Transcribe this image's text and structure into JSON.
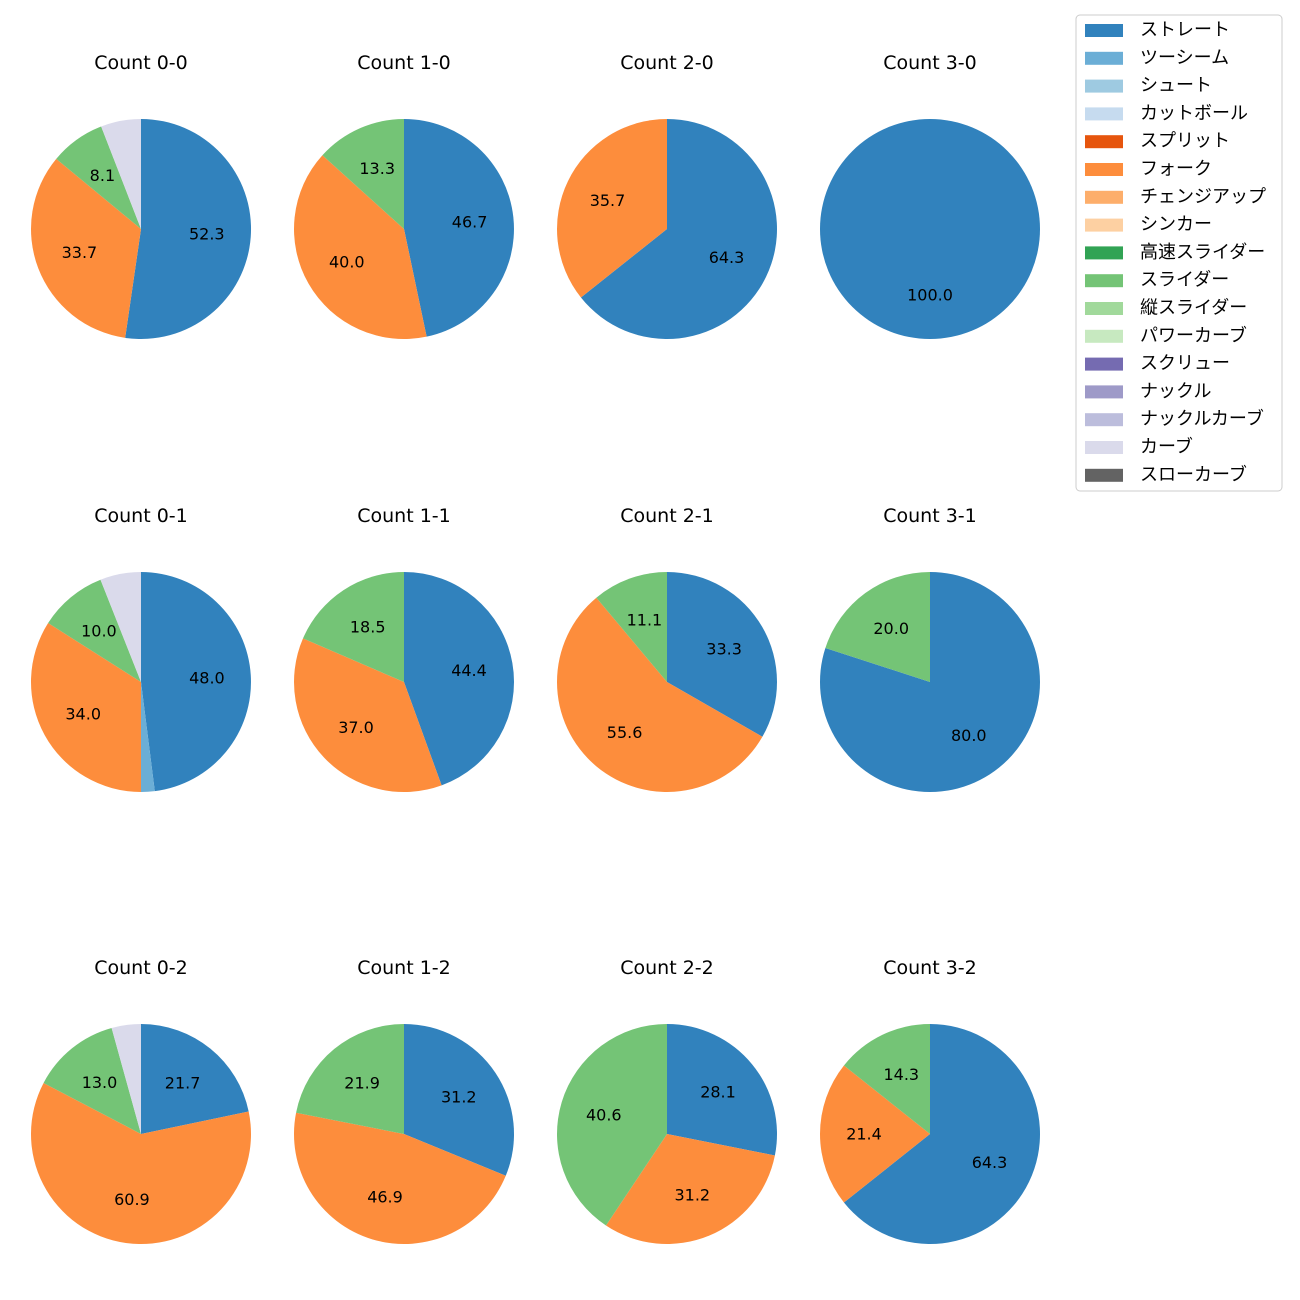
{
  "chart_data": {
    "type": "pie",
    "start_angle_deg": 90,
    "direction": "clockwise",
    "label_format": "one decimal percent",
    "legend": {
      "placement": "top-right",
      "entries": [
        {
          "name": "ストレート",
          "color": "#3182bd"
        },
        {
          "name": "ツーシーム",
          "color": "#6baed6"
        },
        {
          "name": "シュート",
          "color": "#9ecae1"
        },
        {
          "name": "カットボール",
          "color": "#c6dbef"
        },
        {
          "name": "スプリット",
          "color": "#e6550d"
        },
        {
          "name": "フォーク",
          "color": "#fd8d3c"
        },
        {
          "name": "チェンジアップ",
          "color": "#fdae6b"
        },
        {
          "name": "シンカー",
          "color": "#fdd0a2"
        },
        {
          "name": "高速スライダー",
          "color": "#31a354"
        },
        {
          "name": "スライダー",
          "color": "#74c476"
        },
        {
          "name": "縦スライダー",
          "color": "#a1d99b"
        },
        {
          "name": "パワーカーブ",
          "color": "#c7e9c0"
        },
        {
          "name": "スクリュー",
          "color": "#756bb1"
        },
        {
          "name": "ナックル",
          "color": "#9e9ac8"
        },
        {
          "name": "ナックルカーブ",
          "color": "#bcbddc"
        },
        {
          "name": "カーブ",
          "color": "#dadaeb"
        },
        {
          "name": "スローカーブ",
          "color": "#636363"
        }
      ]
    },
    "pies": [
      {
        "title": "Count 0-0",
        "slices": [
          {
            "pitch": "ストレート",
            "value": 52.3,
            "label": "52.3"
          },
          {
            "pitch": "フォーク",
            "value": 33.7,
            "label": "33.7"
          },
          {
            "pitch": "スライダー",
            "value": 8.1,
            "label": "8.1"
          },
          {
            "pitch": "カーブ",
            "value": 5.9,
            "label": ""
          }
        ]
      },
      {
        "title": "Count 1-0",
        "slices": [
          {
            "pitch": "ストレート",
            "value": 46.7,
            "label": "46.7"
          },
          {
            "pitch": "フォーク",
            "value": 40.0,
            "label": "40.0"
          },
          {
            "pitch": "スライダー",
            "value": 13.3,
            "label": "13.3"
          }
        ]
      },
      {
        "title": "Count 2-0",
        "slices": [
          {
            "pitch": "ストレート",
            "value": 64.3,
            "label": "64.3"
          },
          {
            "pitch": "フォーク",
            "value": 35.7,
            "label": "35.7"
          }
        ]
      },
      {
        "title": "Count 3-0",
        "slices": [
          {
            "pitch": "ストレート",
            "value": 100.0,
            "label": "100.0"
          }
        ]
      },
      {
        "title": "Count 0-1",
        "slices": [
          {
            "pitch": "ストレート",
            "value": 48.0,
            "label": "48.0"
          },
          {
            "pitch": "ツーシーム",
            "value": 2.0,
            "label": ""
          },
          {
            "pitch": "フォーク",
            "value": 34.0,
            "label": "34.0"
          },
          {
            "pitch": "スライダー",
            "value": 10.0,
            "label": "10.0"
          },
          {
            "pitch": "カーブ",
            "value": 6.0,
            "label": ""
          }
        ]
      },
      {
        "title": "Count 1-1",
        "slices": [
          {
            "pitch": "ストレート",
            "value": 44.4,
            "label": "44.4"
          },
          {
            "pitch": "フォーク",
            "value": 37.0,
            "label": "37.0"
          },
          {
            "pitch": "スライダー",
            "value": 18.5,
            "label": "18.5"
          }
        ]
      },
      {
        "title": "Count 2-1",
        "slices": [
          {
            "pitch": "ストレート",
            "value": 33.3,
            "label": "33.3"
          },
          {
            "pitch": "フォーク",
            "value": 55.6,
            "label": "55.6"
          },
          {
            "pitch": "スライダー",
            "value": 11.1,
            "label": "11.1"
          }
        ]
      },
      {
        "title": "Count 3-1",
        "slices": [
          {
            "pitch": "ストレート",
            "value": 80.0,
            "label": "80.0"
          },
          {
            "pitch": "スライダー",
            "value": 20.0,
            "label": "20.0"
          }
        ]
      },
      {
        "title": "Count 0-2",
        "slices": [
          {
            "pitch": "ストレート",
            "value": 21.7,
            "label": "21.7"
          },
          {
            "pitch": "フォーク",
            "value": 60.9,
            "label": "60.9"
          },
          {
            "pitch": "スライダー",
            "value": 13.0,
            "label": "13.0"
          },
          {
            "pitch": "カーブ",
            "value": 4.3,
            "label": ""
          }
        ]
      },
      {
        "title": "Count 1-2",
        "slices": [
          {
            "pitch": "ストレート",
            "value": 31.2,
            "label": "31.2"
          },
          {
            "pitch": "フォーク",
            "value": 46.9,
            "label": "46.9"
          },
          {
            "pitch": "スライダー",
            "value": 21.9,
            "label": "21.9"
          }
        ]
      },
      {
        "title": "Count 2-2",
        "slices": [
          {
            "pitch": "ストレート",
            "value": 28.1,
            "label": "28.1"
          },
          {
            "pitch": "フォーク",
            "value": 31.2,
            "label": "31.2"
          },
          {
            "pitch": "スライダー",
            "value": 40.6,
            "label": "40.6"
          }
        ]
      },
      {
        "title": "Count 3-2",
        "slices": [
          {
            "pitch": "ストレート",
            "value": 64.3,
            "label": "64.3"
          },
          {
            "pitch": "フォーク",
            "value": 21.4,
            "label": "21.4"
          },
          {
            "pitch": "スライダー",
            "value": 14.3,
            "label": "14.3"
          }
        ]
      }
    ]
  }
}
